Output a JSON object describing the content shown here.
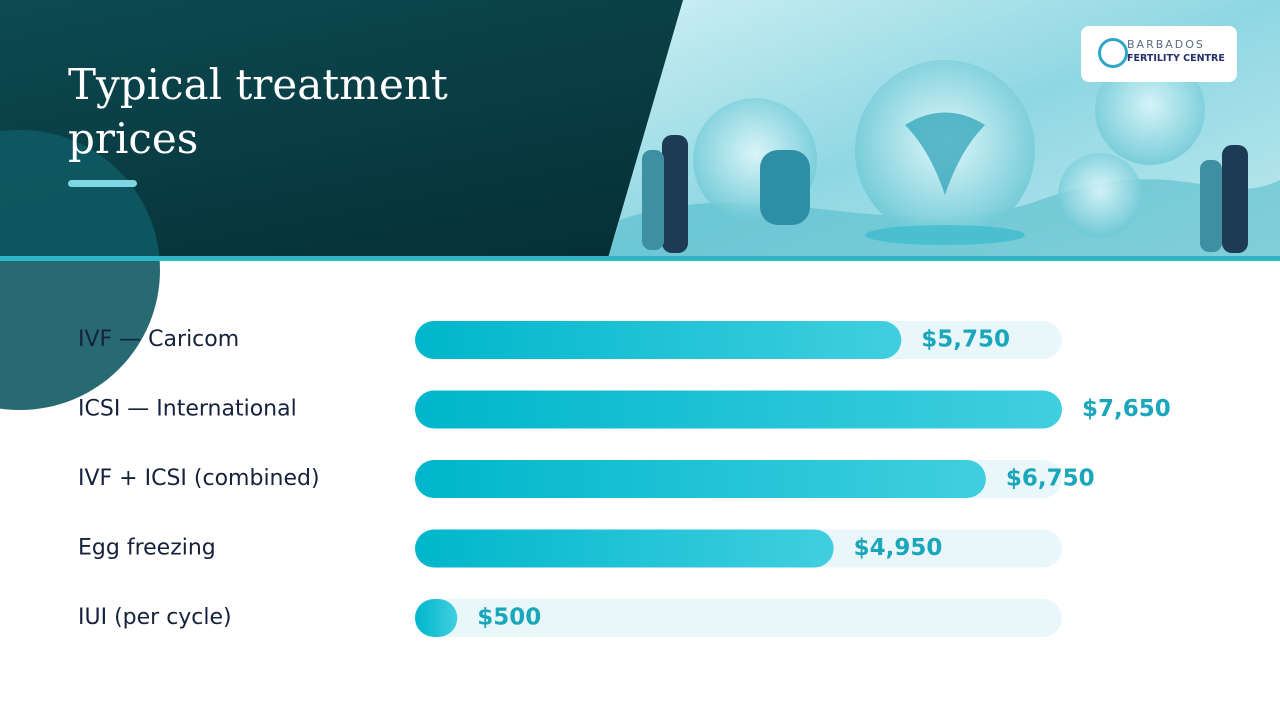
{
  "header": {
    "title": "Typical treatment prices",
    "logo_line1": "BARBADOS",
    "logo_line2": "FERTILITY CENTRE"
  },
  "chart_data": {
    "type": "bar",
    "orientation": "horizontal",
    "categories": [
      "IVF — Caricom",
      "ICSI — International",
      "IVF + ICSI (combined)",
      "Egg freezing",
      "IUI (per cycle)"
    ],
    "values": [
      5750,
      7650,
      6750,
      4950,
      500
    ],
    "value_labels": [
      "$5,750",
      "$7,650",
      "$6,750",
      "$4,950",
      "$500"
    ],
    "color": "#12bcd0"
  }
}
